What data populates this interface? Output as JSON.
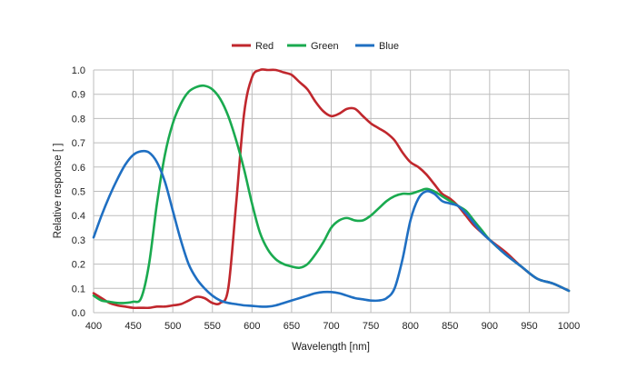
{
  "chart_data": {
    "type": "line",
    "xlabel": "Wavelength [nm]",
    "ylabel": "Relative response [ ]",
    "xlim": [
      400,
      1000
    ],
    "ylim": [
      0,
      1.0
    ],
    "x_ticks": [
      "400",
      "450",
      "500",
      "550",
      "600",
      "650",
      "700",
      "750",
      "800",
      "850",
      "900",
      "950",
      "1000"
    ],
    "y_ticks": [
      "0.0",
      "0.1",
      "0.2",
      "0.3",
      "0.4",
      "0.5",
      "0.6",
      "0.7",
      "0.8",
      "0.9",
      "1.0"
    ],
    "grid": true,
    "legend_position": "top",
    "series": [
      {
        "name": "Red",
        "color": "#c0272d",
        "x": [
          400,
          410,
          420,
          430,
          440,
          450,
          460,
          470,
          480,
          490,
          500,
          510,
          520,
          530,
          540,
          550,
          560,
          570,
          580,
          590,
          600,
          610,
          620,
          630,
          640,
          650,
          660,
          670,
          680,
          690,
          700,
          710,
          720,
          730,
          740,
          750,
          760,
          770,
          780,
          790,
          800,
          810,
          820,
          830,
          840,
          850,
          860,
          870,
          880,
          890,
          900,
          920,
          940,
          960,
          980,
          1000
        ],
        "y": [
          0.08,
          0.06,
          0.04,
          0.03,
          0.025,
          0.02,
          0.02,
          0.02,
          0.025,
          0.025,
          0.03,
          0.035,
          0.05,
          0.065,
          0.06,
          0.04,
          0.04,
          0.1,
          0.45,
          0.82,
          0.97,
          1.0,
          1.0,
          1.0,
          0.99,
          0.98,
          0.95,
          0.92,
          0.87,
          0.83,
          0.81,
          0.82,
          0.84,
          0.84,
          0.81,
          0.78,
          0.76,
          0.74,
          0.71,
          0.66,
          0.62,
          0.6,
          0.57,
          0.53,
          0.49,
          0.47,
          0.44,
          0.4,
          0.36,
          0.33,
          0.3,
          0.25,
          0.19,
          0.14,
          0.12,
          0.09
        ]
      },
      {
        "name": "Green",
        "color": "#1aaa4f",
        "x": [
          400,
          410,
          420,
          430,
          440,
          450,
          460,
          470,
          480,
          490,
          500,
          510,
          520,
          530,
          540,
          550,
          560,
          570,
          580,
          590,
          600,
          610,
          620,
          630,
          640,
          650,
          660,
          670,
          680,
          690,
          700,
          710,
          720,
          730,
          740,
          750,
          760,
          770,
          780,
          790,
          800,
          810,
          820,
          830,
          840,
          850,
          860,
          870,
          880,
          890,
          900,
          920,
          940,
          960,
          980,
          1000
        ],
        "y": [
          0.07,
          0.05,
          0.045,
          0.04,
          0.04,
          0.045,
          0.06,
          0.2,
          0.45,
          0.65,
          0.78,
          0.86,
          0.91,
          0.93,
          0.935,
          0.92,
          0.88,
          0.81,
          0.71,
          0.59,
          0.45,
          0.33,
          0.26,
          0.22,
          0.2,
          0.19,
          0.185,
          0.2,
          0.24,
          0.29,
          0.35,
          0.38,
          0.39,
          0.38,
          0.38,
          0.4,
          0.43,
          0.46,
          0.48,
          0.49,
          0.49,
          0.5,
          0.51,
          0.5,
          0.48,
          0.46,
          0.44,
          0.42,
          0.38,
          0.34,
          0.3,
          0.24,
          0.19,
          0.14,
          0.12,
          0.09
        ]
      },
      {
        "name": "Blue",
        "color": "#1f6fc2",
        "x": [
          400,
          410,
          420,
          430,
          440,
          450,
          460,
          470,
          480,
          490,
          500,
          510,
          520,
          530,
          540,
          550,
          560,
          570,
          580,
          590,
          600,
          610,
          620,
          630,
          640,
          650,
          660,
          670,
          680,
          690,
          700,
          710,
          720,
          730,
          740,
          750,
          760,
          770,
          780,
          790,
          800,
          810,
          820,
          830,
          840,
          850,
          860,
          870,
          880,
          890,
          900,
          920,
          940,
          960,
          980,
          1000
        ],
        "y": [
          0.31,
          0.4,
          0.48,
          0.55,
          0.61,
          0.65,
          0.665,
          0.66,
          0.62,
          0.54,
          0.42,
          0.3,
          0.2,
          0.14,
          0.1,
          0.07,
          0.05,
          0.04,
          0.035,
          0.03,
          0.028,
          0.025,
          0.025,
          0.03,
          0.04,
          0.05,
          0.06,
          0.07,
          0.08,
          0.085,
          0.085,
          0.08,
          0.07,
          0.06,
          0.055,
          0.05,
          0.05,
          0.06,
          0.1,
          0.22,
          0.38,
          0.47,
          0.5,
          0.49,
          0.46,
          0.45,
          0.44,
          0.41,
          0.37,
          0.33,
          0.3,
          0.24,
          0.19,
          0.14,
          0.12,
          0.09
        ]
      }
    ]
  }
}
